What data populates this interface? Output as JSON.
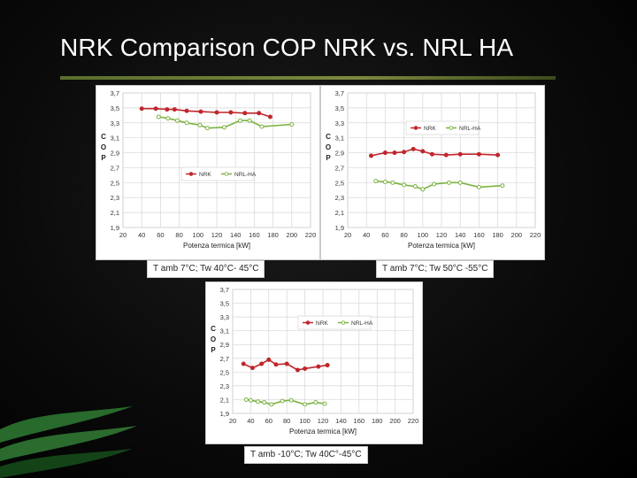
{
  "slide": {
    "title": "NRK Comparison COP NRK vs. NRL HA"
  },
  "colors": {
    "nrk": "#c0262d",
    "nrl_ha": "#7cb342",
    "background": "#000000",
    "rule": "#6b7b33",
    "swoosh": "#2e7d32"
  },
  "chart_data": [
    {
      "type": "line",
      "caption": "T amb 7°C; Tw 40°C- 45°C",
      "xlabel": "Potenza termica [kW]",
      "ylabel": "COP",
      "xlim": [
        20,
        220
      ],
      "ylim": [
        1.9,
        3.7
      ],
      "xticks": [
        "20",
        "40",
        "60",
        "80",
        "100",
        "120",
        "140",
        "160",
        "180",
        "200",
        "220"
      ],
      "yticks": [
        "1,9",
        "2,1",
        "2,3",
        "2,5",
        "2,7",
        "2,9",
        "3,1",
        "3,3",
        "3,5",
        "3,7"
      ],
      "grid": true,
      "legend_position": "center-left",
      "series": [
        {
          "name": "NRK",
          "x": [
            40,
            55,
            67,
            75,
            88,
            103,
            120,
            135,
            150,
            165,
            177
          ],
          "y": [
            3.49,
            3.49,
            3.48,
            3.48,
            3.46,
            3.45,
            3.44,
            3.44,
            3.43,
            3.43,
            3.38
          ]
        },
        {
          "name": "NRL-HA",
          "x": [
            58,
            68,
            78,
            88,
            102,
            110,
            128,
            145,
            155,
            168,
            200
          ],
          "y": [
            3.38,
            3.36,
            3.33,
            3.3,
            3.27,
            3.23,
            3.24,
            3.33,
            3.33,
            3.25,
            3.28
          ]
        }
      ]
    },
    {
      "type": "line",
      "caption": "T amb 7°C; Tw 50°C -55°C",
      "xlabel": "Potenza termica [kW]",
      "ylabel": "COP",
      "xlim": [
        20,
        220
      ],
      "ylim": [
        1.9,
        3.7
      ],
      "xticks": [
        "20",
        "40",
        "60",
        "80",
        "100",
        "120",
        "140",
        "160",
        "180",
        "200",
        "220"
      ],
      "yticks": [
        "1,9",
        "2,1",
        "2,3",
        "2,5",
        "2,7",
        "2,9",
        "3,1",
        "3,3",
        "3,5",
        "3,7"
      ],
      "grid": true,
      "legend_position": "top-center",
      "series": [
        {
          "name": "NRK",
          "x": [
            45,
            60,
            70,
            80,
            90,
            100,
            110,
            125,
            140,
            160,
            180
          ],
          "y": [
            2.86,
            2.9,
            2.9,
            2.91,
            2.95,
            2.92,
            2.88,
            2.87,
            2.88,
            2.88,
            2.87
          ]
        },
        {
          "name": "NRL-HA",
          "x": [
            50,
            60,
            68,
            80,
            92,
            100,
            112,
            128,
            140,
            160,
            185
          ],
          "y": [
            2.52,
            2.51,
            2.5,
            2.47,
            2.45,
            2.41,
            2.48,
            2.5,
            2.5,
            2.44,
            2.46
          ]
        }
      ]
    },
    {
      "type": "line",
      "caption": "T amb -10°C; Tw 40C°-45°C",
      "xlabel": "Potenza termica [kW]",
      "ylabel": "COP",
      "xlim": [
        20,
        220
      ],
      "ylim": [
        1.9,
        3.7
      ],
      "xticks": [
        "20",
        "40",
        "60",
        "80",
        "100",
        "120",
        "140",
        "160",
        "180",
        "200",
        "220"
      ],
      "yticks": [
        "1,9",
        "2,1",
        "2,3",
        "2,5",
        "2,7",
        "2,9",
        "3,1",
        "3,3",
        "3,5",
        "3,7"
      ],
      "grid": true,
      "legend_position": "top-center",
      "series": [
        {
          "name": "NRK",
          "x": [
            32,
            42,
            52,
            60,
            68,
            80,
            92,
            100,
            115,
            125
          ],
          "y": [
            2.62,
            2.56,
            2.62,
            2.68,
            2.61,
            2.62,
            2.53,
            2.55,
            2.58,
            2.6
          ]
        },
        {
          "name": "NRL-HA",
          "x": [
            35,
            40,
            48,
            55,
            63,
            75,
            85,
            100,
            112,
            122
          ],
          "y": [
            2.1,
            2.09,
            2.07,
            2.06,
            2.03,
            2.08,
            2.09,
            2.03,
            2.06,
            2.04
          ]
        }
      ]
    }
  ]
}
